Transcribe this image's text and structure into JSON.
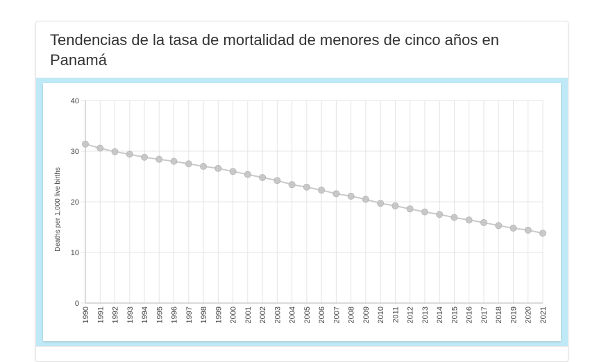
{
  "page": {
    "title": "Tendencias de la tasa de mortalidad de menores de cinco años en Panamá"
  },
  "colors": {
    "band": "#bfe9f6",
    "line": "#c9c9c9",
    "marker": "#c4c4c4",
    "grid": "#e4e4e4",
    "text": "#444444"
  },
  "chart_data": {
    "type": "line",
    "title": "",
    "xlabel": "",
    "ylabel": "Deaths per 1,000 live births",
    "ylim": [
      0,
      40
    ],
    "yticks": [
      0,
      10,
      20,
      30,
      40
    ],
    "grid": true,
    "x": [
      "1990",
      "1991",
      "1992",
      "1993",
      "1994",
      "1995",
      "1996",
      "1997",
      "1998",
      "1999",
      "2000",
      "2001",
      "2002",
      "2003",
      "2004",
      "2005",
      "2006",
      "2007",
      "2008",
      "2009",
      "2010",
      "2011",
      "2012",
      "2013",
      "2014",
      "2015",
      "2016",
      "2017",
      "2018",
      "2019",
      "2020",
      "2021"
    ],
    "series": [
      {
        "values": [
          31.4,
          30.6,
          29.9,
          29.4,
          28.8,
          28.4,
          28.0,
          27.5,
          27.0,
          26.6,
          26.0,
          25.4,
          24.8,
          24.2,
          23.4,
          22.9,
          22.3,
          21.6,
          21.1,
          20.5,
          19.7,
          19.2,
          18.6,
          18.0,
          17.5,
          16.9,
          16.4,
          15.9,
          15.3,
          14.8,
          14.4,
          13.8
        ]
      }
    ]
  }
}
